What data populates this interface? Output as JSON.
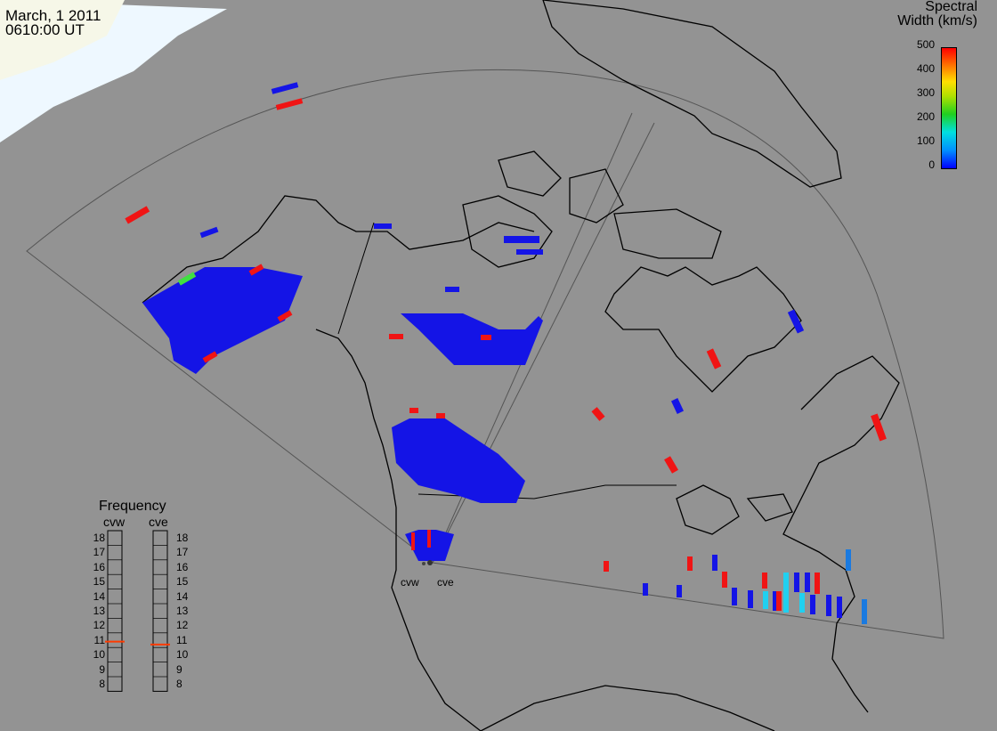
{
  "header": {
    "date": "March, 1 2011",
    "time": "0610:00 UT"
  },
  "colorbar": {
    "title_line1": "Spectral",
    "title_line2": "Width (km/s)",
    "ticks": [
      "500",
      "400",
      "300",
      "200",
      "100",
      "0"
    ],
    "colors": [
      "#0000ff",
      "#0090ff",
      "#00e0e0",
      "#20d020",
      "#ffe000",
      "#ff0000"
    ]
  },
  "frequency": {
    "title": "Frequency",
    "left_label": "cvw",
    "right_label": "cve",
    "scale": [
      "18",
      "17",
      "16",
      "15",
      "14",
      "13",
      "12",
      "11",
      "10",
      "9",
      "8"
    ],
    "cvw_value": 10.9,
    "cve_value": 10.7,
    "marker_color": "#ff3b00"
  },
  "radars": {
    "west": "cvw",
    "east": "cve"
  },
  "colors": {
    "background": "#939393",
    "land_lines": "#000000",
    "fov_lines": "#555555",
    "ice": "#e8f8ff"
  }
}
